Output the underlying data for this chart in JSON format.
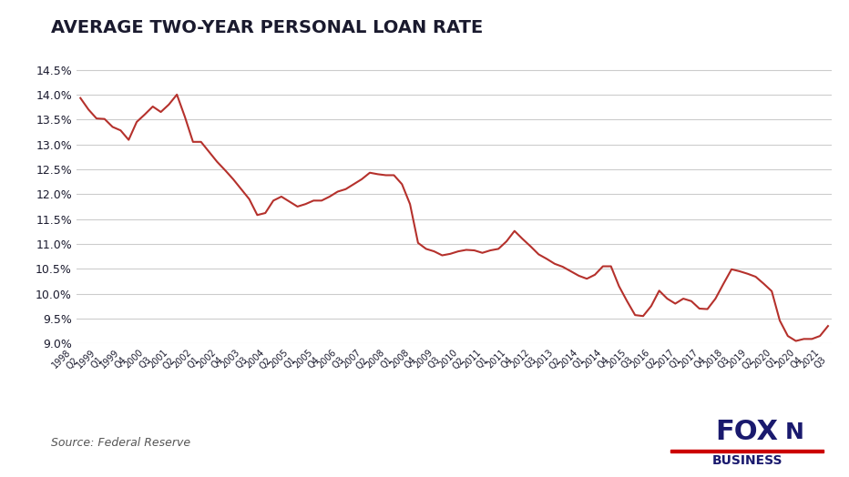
{
  "title": "AVERAGE TWO-YEAR PERSONAL LOAN RATE",
  "source": "Source: Federal Reserve",
  "line_color": "#b5312c",
  "bg_color": "#ffffff",
  "grid_color": "#cccccc",
  "title_color": "#1a1a2e",
  "axis_label_color": "#1a1a2e",
  "ylim": [
    9.0,
    14.75
  ],
  "yticks": [
    9.0,
    9.5,
    10.0,
    10.5,
    11.0,
    11.5,
    12.0,
    12.5,
    13.0,
    13.5,
    14.0,
    14.5
  ],
  "labels": [
    "1998 Q2",
    "1999 Q1",
    "1999 Q4",
    "2000 Q3",
    "2001 Q2",
    "2002 Q1",
    "2002 Q4",
    "2003 Q3",
    "2004 Q2",
    "2005 Q1",
    "2005 Q4",
    "2006 Q3",
    "2007 Q2",
    "2008 Q1",
    "2008 Q4",
    "2009 Q3",
    "2010 Q2",
    "2011 Q1",
    "2011 Q4",
    "2012 Q3",
    "2013 Q2",
    "2014 Q1",
    "2014 Q4",
    "2015 Q3",
    "2016 Q2",
    "2017 Q1",
    "2017 Q4",
    "2018 Q3",
    "2019 Q2",
    "2020 Q1",
    "2020 Q4",
    "2021 Q3"
  ],
  "values": [
    13.93,
    13.51,
    13.09,
    13.76,
    14.0,
    13.05,
    12.48,
    11.58,
    11.87,
    11.75,
    11.87,
    12.1,
    12.43,
    12.38,
    11.02,
    10.77,
    10.88,
    10.87,
    11.26,
    10.79,
    10.54,
    10.3,
    10.55,
    9.57,
    10.06,
    9.9,
    9.69,
    10.49,
    10.34,
    9.46,
    9.09,
    9.35
  ],
  "all_labels": [
    "1998 Q2",
    "1999 Q1",
    "1999 Q4",
    "2000 Q3",
    "2001 Q2",
    "2002 Q1",
    "2002 Q4",
    "2003 Q3",
    "2004 Q2",
    "2005 Q1",
    "2005 Q4",
    "2006 Q3",
    "2007 Q2",
    "2008 Q1",
    "2008 Q4",
    "2009 Q3",
    "2010 Q2",
    "2011 Q1",
    "2011 Q4",
    "2012 Q3",
    "2013 Q2",
    "2014 Q1",
    "2014 Q4",
    "2015 Q3",
    "2016 Q2",
    "2017 Q1",
    "2017 Q4",
    "2018 Q3",
    "2019 Q2",
    "2020 Q1",
    "2020 Q4",
    "2021 Q3"
  ]
}
